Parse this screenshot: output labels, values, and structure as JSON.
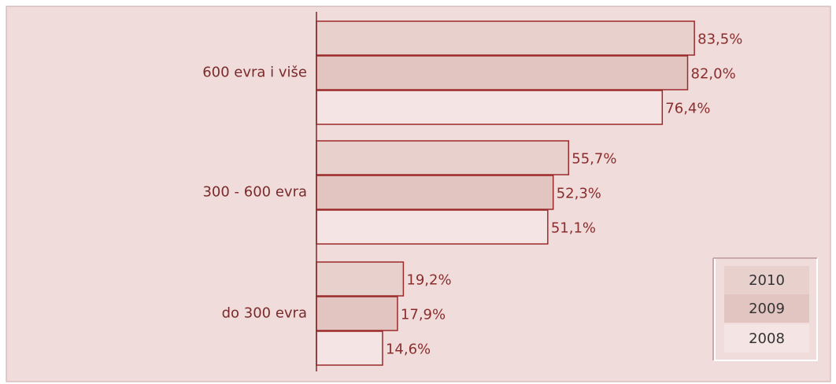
{
  "chart_data": {
    "type": "bar",
    "orientation": "horizontal",
    "categories": [
      "600 evra i više",
      "300 - 600 evra",
      "do 300 evra"
    ],
    "series": [
      {
        "name": "2010",
        "color": "#e8d0cd",
        "values": [
          83.5,
          55.7,
          19.2
        ],
        "value_labels": [
          "83,5%",
          "55,7%",
          "19,2%"
        ]
      },
      {
        "name": "2009",
        "color": "#e2c4c1",
        "values": [
          82.0,
          52.3,
          17.9
        ],
        "value_labels": [
          "82,0%",
          "52,3%",
          "17,9%"
        ]
      },
      {
        "name": "2008",
        "color": "#f4e5e4",
        "values": [
          76.4,
          51.1,
          14.6
        ],
        "value_labels": [
          "76,4%",
          "51,1%",
          "14,6%"
        ]
      }
    ],
    "xlim": [
      0,
      100
    ],
    "legend": "bottom-right"
  }
}
